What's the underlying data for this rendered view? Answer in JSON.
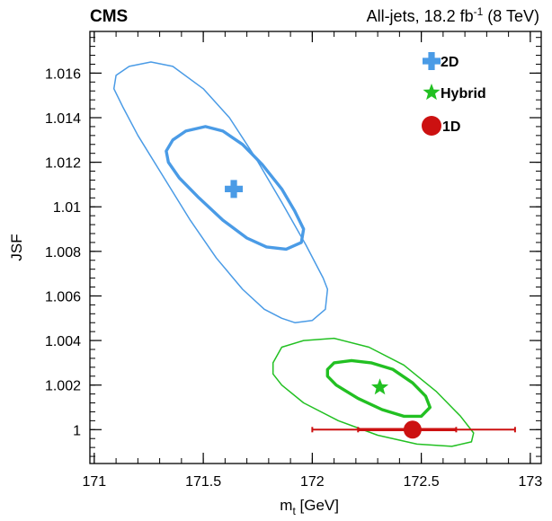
{
  "header": {
    "experiment": "CMS",
    "channel_prefix": "All-jets, 18.2 fb",
    "channel_exp": "-1",
    "channel_suffix": " (8 TeV)"
  },
  "chart_data": {
    "type": "scatter",
    "xlabel_main": "m",
    "xlabel_sub": "t",
    "xlabel_unit": " [GeV]",
    "ylabel": "JSF",
    "xlim": [
      170.98,
      173.05
    ],
    "ylim": [
      0.99848,
      1.01787
    ],
    "x_ticks": [
      171,
      171.5,
      172,
      172.5,
      173
    ],
    "x_tick_labels": [
      "171",
      "171.5",
      "172",
      "172.5",
      "173"
    ],
    "y_ticks": [
      1,
      1.002,
      1.004,
      1.006,
      1.008,
      1.01,
      1.012,
      1.014,
      1.016
    ],
    "y_tick_labels": [
      "1",
      "1.002",
      "1.004",
      "1.006",
      "1.008",
      "1.01",
      "1.012",
      "1.014",
      "1.016"
    ],
    "grid": false,
    "legend_position": "top-right",
    "series": [
      {
        "name": "2D",
        "marker": "cross",
        "color": "#4a9be6",
        "point": {
          "x": 171.64,
          "y": 1.0108
        },
        "contours": [
          {
            "level": "inner",
            "points": [
              [
                171.33,
                1.0125
              ],
              [
                171.36,
                1.013
              ],
              [
                171.42,
                1.0134
              ],
              [
                171.51,
                1.0136
              ],
              [
                171.59,
                1.0134
              ],
              [
                171.68,
                1.0128
              ],
              [
                171.77,
                1.0119
              ],
              [
                171.86,
                1.0108
              ],
              [
                171.92,
                1.0098
              ],
              [
                171.96,
                1.009
              ],
              [
                171.95,
                1.0084
              ],
              [
                171.88,
                1.0081
              ],
              [
                171.79,
                1.0082
              ],
              [
                171.7,
                1.0086
              ],
              [
                171.59,
                1.0094
              ],
              [
                171.48,
                1.0104
              ],
              [
                171.39,
                1.0113
              ],
              [
                171.34,
                1.012
              ]
            ]
          },
          {
            "level": "outer",
            "points": [
              [
                171.1,
                1.0159
              ],
              [
                171.16,
                1.0163
              ],
              [
                171.26,
                1.0165
              ],
              [
                171.36,
                1.0163
              ],
              [
                171.5,
                1.0153
              ],
              [
                171.62,
                1.014
              ],
              [
                171.74,
                1.0122
              ],
              [
                171.86,
                1.0102
              ],
              [
                171.97,
                1.0083
              ],
              [
                172.05,
                1.0068
              ],
              [
                172.07,
                1.0063
              ],
              [
                172.06,
                1.0054
              ],
              [
                172.0,
                1.0049
              ],
              [
                171.92,
                1.0048
              ],
              [
                171.86,
                1.005
              ],
              [
                171.78,
                1.0054
              ],
              [
                171.68,
                1.0063
              ],
              [
                171.56,
                1.0077
              ],
              [
                171.44,
                1.0094
              ],
              [
                171.32,
                1.0113
              ],
              [
                171.2,
                1.0132
              ],
              [
                171.13,
                1.0145
              ],
              [
                171.09,
                1.0153
              ]
            ]
          }
        ]
      },
      {
        "name": "Hybrid",
        "marker": "star",
        "color": "#22c022",
        "point": {
          "x": 172.31,
          "y": 1.0019
        },
        "contours": [
          {
            "level": "inner",
            "points": [
              [
                172.07,
                1.0027
              ],
              [
                172.1,
                1.003
              ],
              [
                172.18,
                1.0031
              ],
              [
                172.27,
                1.003
              ],
              [
                172.37,
                1.0027
              ],
              [
                172.46,
                1.0021
              ],
              [
                172.52,
                1.0015
              ],
              [
                172.54,
                1.001
              ],
              [
                172.5,
                1.0006
              ],
              [
                172.42,
                1.0006
              ],
              [
                172.32,
                1.0009
              ],
              [
                172.21,
                1.0014
              ],
              [
                172.11,
                1.002
              ],
              [
                172.07,
                1.0024
              ]
            ]
          },
          {
            "level": "outer",
            "points": [
              [
                171.82,
                1.003
              ],
              [
                171.86,
                1.0037
              ],
              [
                171.96,
                1.004
              ],
              [
                172.1,
                1.0041
              ],
              [
                172.26,
                1.0037
              ],
              [
                172.42,
                1.0029
              ],
              [
                172.57,
                1.0017
              ],
              [
                172.68,
                1.0006
              ],
              [
                172.74,
                0.99985
              ],
              [
                172.73,
                0.99945
              ],
              [
                172.64,
                0.99925
              ],
              [
                172.48,
                0.99935
              ],
              [
                172.3,
                0.99975
              ],
              [
                172.12,
                1.0004
              ],
              [
                171.96,
                1.0012
              ],
              [
                171.86,
                1.002
              ],
              [
                171.82,
                1.0025
              ]
            ]
          }
        ]
      },
      {
        "name": "1D",
        "marker": "circle",
        "color": "#cc1111",
        "point": {
          "x": 172.46,
          "y": 1.0
        },
        "xerr_inner": [
          172.21,
          172.66
        ],
        "xerr_outer": [
          172.0,
          172.93
        ]
      }
    ]
  }
}
